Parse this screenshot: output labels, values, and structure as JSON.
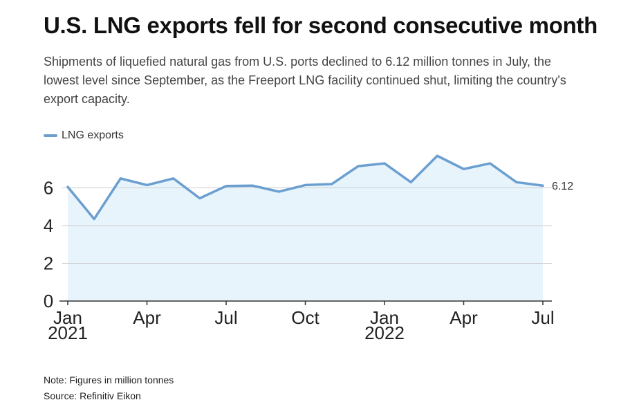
{
  "title": "U.S. LNG exports fell for second consecutive month",
  "subtitle": "Shipments of liquefied natural gas from U.S. ports declined to 6.12 million tonnes in July, the lowest level since September, as the Freeport LNG facility continued shut, limiting the country's export capacity.",
  "note": "Note: Figures in million tonnes",
  "source": "Source: Refinitiv Eikon",
  "colors": {
    "line": "#6b9fd0",
    "area": "#e8f4fc",
    "grid": "#cccccc",
    "axis": "#333333"
  },
  "chart_data": {
    "type": "area",
    "x": [
      "2021-01",
      "2021-02",
      "2021-03",
      "2021-04",
      "2021-05",
      "2021-06",
      "2021-07",
      "2021-08",
      "2021-09",
      "2021-10",
      "2021-11",
      "2021-12",
      "2022-01",
      "2022-02",
      "2022-03",
      "2022-04",
      "2022-05",
      "2022-06",
      "2022-07"
    ],
    "series": [
      {
        "name": "LNG exports",
        "values": [
          6.05,
          4.35,
          6.5,
          6.15,
          6.5,
          5.45,
          6.1,
          6.12,
          5.8,
          6.15,
          6.2,
          7.15,
          7.3,
          6.3,
          7.7,
          7.0,
          7.3,
          6.3,
          6.12
        ]
      }
    ],
    "ylim": [
      0,
      8
    ],
    "yticks": [
      0,
      2,
      4,
      6
    ],
    "ytick_labels": [
      "0",
      "2",
      "4",
      "6"
    ],
    "xticks": [
      {
        "index": 0,
        "label": "Jan",
        "sublabel": "2021"
      },
      {
        "index": 3,
        "label": "Apr",
        "sublabel": ""
      },
      {
        "index": 6,
        "label": "Jul",
        "sublabel": ""
      },
      {
        "index": 9,
        "label": "Oct",
        "sublabel": ""
      },
      {
        "index": 12,
        "label": "Jan",
        "sublabel": "2022"
      },
      {
        "index": 15,
        "label": "Apr",
        "sublabel": ""
      },
      {
        "index": 18,
        "label": "Jul",
        "sublabel": ""
      }
    ],
    "end_label": "6.12",
    "grid": true,
    "legend_position": "top-left"
  }
}
